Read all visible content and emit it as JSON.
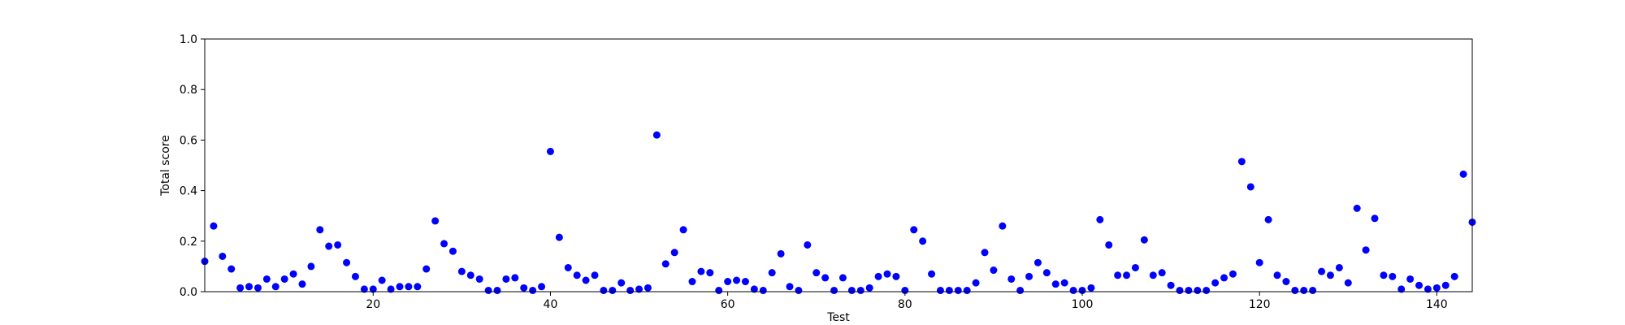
{
  "chart_data": {
    "type": "scatter",
    "xlabel": "Test",
    "ylabel": "Total score",
    "xlim": [
      1,
      144
    ],
    "ylim": [
      0.0,
      1.0
    ],
    "grid": false,
    "marker_color": "#0000ff",
    "x_ticks": [
      20,
      40,
      60,
      80,
      100,
      120,
      140
    ],
    "y_ticks": [
      0.0,
      0.2,
      0.4,
      0.6,
      0.8,
      1.0
    ],
    "x_tick_labels": [
      "20",
      "40",
      "60",
      "80",
      "100",
      "120",
      "140"
    ],
    "y_tick_labels": [
      "0.0",
      "0.2",
      "0.4",
      "0.6",
      "0.8",
      "1.0"
    ],
    "series": [
      {
        "x": [
          1,
          2,
          3,
          4,
          5,
          6,
          7,
          8,
          9,
          10,
          11,
          12,
          13,
          14,
          15,
          16,
          17,
          18,
          19,
          20,
          21,
          22,
          23,
          24,
          25,
          26,
          27,
          28,
          29,
          30,
          31,
          32,
          33,
          34,
          35,
          36,
          37,
          38,
          39,
          40,
          41,
          42,
          43,
          44,
          45,
          46,
          47,
          48,
          49,
          50,
          51,
          52,
          53,
          54,
          55,
          56,
          57,
          58,
          59,
          60,
          61,
          62,
          63,
          64,
          65,
          66,
          67,
          68,
          69,
          70,
          71,
          72,
          73,
          74,
          75,
          76,
          77,
          78,
          79,
          80,
          81,
          82,
          83,
          84,
          85,
          86,
          87,
          88,
          89,
          90,
          91,
          92,
          93,
          94,
          95,
          96,
          97,
          98,
          99,
          100,
          101,
          102,
          103,
          104,
          105,
          106,
          107,
          108,
          109,
          110,
          111,
          112,
          113,
          114,
          115,
          116,
          117,
          118,
          119,
          120,
          121,
          122,
          123,
          124,
          125,
          126,
          127,
          128,
          129,
          130,
          131,
          132,
          133,
          134,
          135,
          136,
          137,
          138,
          139,
          140,
          141,
          142,
          143,
          144
        ],
        "y": [
          0.12,
          0.26,
          0.14,
          0.09,
          0.015,
          0.02,
          0.015,
          0.05,
          0.02,
          0.05,
          0.07,
          0.03,
          0.1,
          0.245,
          0.18,
          0.185,
          0.115,
          0.06,
          0.01,
          0.01,
          0.045,
          0.01,
          0.02,
          0.02,
          0.02,
          0.09,
          0.28,
          0.19,
          0.16,
          0.08,
          0.065,
          0.05,
          0.005,
          0.005,
          0.05,
          0.055,
          0.015,
          0.005,
          0.02,
          0.555,
          0.215,
          0.095,
          0.065,
          0.045,
          0.065,
          0.005,
          0.005,
          0.035,
          0.005,
          0.01,
          0.015,
          0.62,
          0.11,
          0.155,
          0.245,
          0.04,
          0.08,
          0.075,
          0.005,
          0.04,
          0.045,
          0.04,
          0.01,
          0.005,
          0.075,
          0.15,
          0.02,
          0.005,
          0.185,
          0.075,
          0.055,
          0.005,
          0.055,
          0.005,
          0.005,
          0.015,
          0.06,
          0.07,
          0.06,
          0.005,
          0.245,
          0.2,
          0.07,
          0.005,
          0.005,
          0.005,
          0.005,
          0.035,
          0.155,
          0.085,
          0.26,
          0.05,
          0.005,
          0.06,
          0.115,
          0.075,
          0.03,
          0.035,
          0.005,
          0.005,
          0.015,
          0.285,
          0.185,
          0.065,
          0.065,
          0.095,
          0.205,
          0.065,
          0.075,
          0.025,
          0.005,
          0.005,
          0.005,
          0.005,
          0.035,
          0.055,
          0.07,
          0.515,
          0.415,
          0.115,
          0.285,
          0.065,
          0.04,
          0.005,
          0.005,
          0.005,
          0.08,
          0.065,
          0.095,
          0.035,
          0.33,
          0.165,
          0.29,
          0.065,
          0.06,
          0.01,
          0.05,
          0.025,
          0.01,
          0.015,
          0.025,
          0.06,
          0.465,
          0.275
        ]
      }
    ]
  }
}
